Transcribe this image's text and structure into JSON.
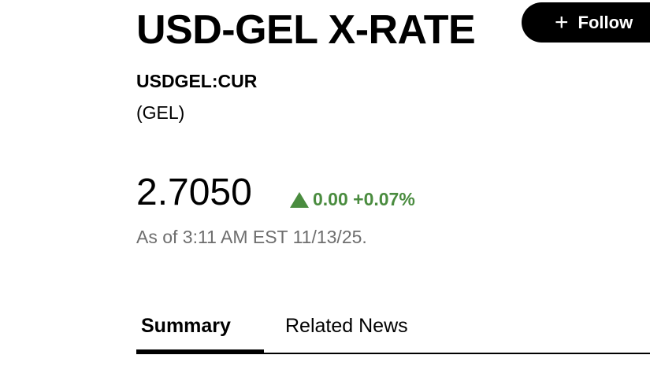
{
  "header": {
    "title": "USD-GEL X-RATE",
    "follow_label": "Follow",
    "follow_icon": "plus-icon"
  },
  "quote": {
    "ticker": "USDGEL:CUR",
    "currency": "(GEL)",
    "price": "2.7050",
    "change": "0.00",
    "change_pct": "+0.07%",
    "direction": "up",
    "as_of": "As of 3:11 AM EST 11/13/25.",
    "up_color": "#4a8c3f"
  },
  "tabs": [
    {
      "label": "Summary",
      "active": true
    },
    {
      "label": "Related News",
      "active": false
    }
  ]
}
